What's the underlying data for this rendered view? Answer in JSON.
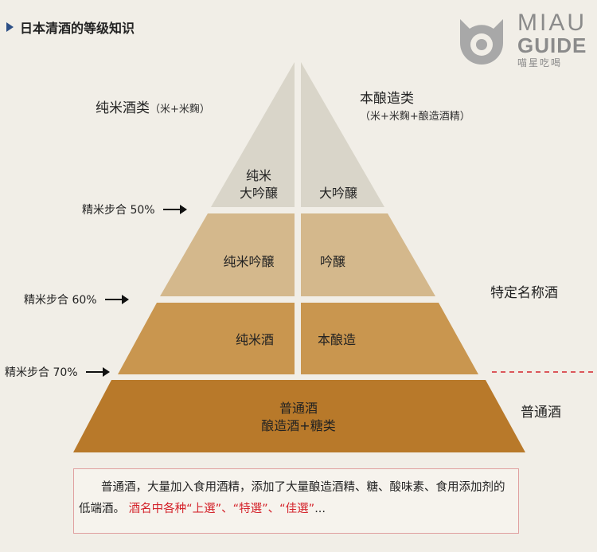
{
  "header": {
    "title": "日本清酒的等级知识"
  },
  "logo": {
    "line1": "MIAU",
    "line2": "GUIDE",
    "tagline": "喵星吃喝"
  },
  "columns": {
    "left_title": "纯米酒类",
    "left_sub": "（米+米麴）",
    "right_title": "本酿造类",
    "right_sub": "（米+米麴+酿造酒精）"
  },
  "tiers": {
    "daiginjo_left_1": "纯米",
    "daiginjo_left_2": "大吟醸",
    "daiginjo_right": "大吟醸",
    "ginjo_left": "纯米吟醸",
    "ginjo_right": "吟醸",
    "honjozo_left": "纯米酒",
    "honjozo_right": "本酿造",
    "futsu_1": "普通酒",
    "futsu_2": "酿造酒+糖类"
  },
  "polish": {
    "p50": "精米步合 50%",
    "p60": "精米步合 60%",
    "p70": "精米步合 70%"
  },
  "categories": {
    "special": "特定名称酒",
    "ordinary": "普通酒"
  },
  "note": {
    "text": "普通酒，大量加入食用酒精，添加了大量酿造酒精、糖、酸味素、食用添加剂的低端酒。",
    "highlight": "酒名中各种“上選”、“特選”、“佳選”",
    "ellipsis": "..."
  },
  "colors": {
    "tier1": "#d9d5c9",
    "tier2": "#d4b88c",
    "tier3": "#c9964f",
    "tier4": "#b8792a",
    "accent_red": "#d4232b",
    "marker_blue": "#2d4f86"
  }
}
